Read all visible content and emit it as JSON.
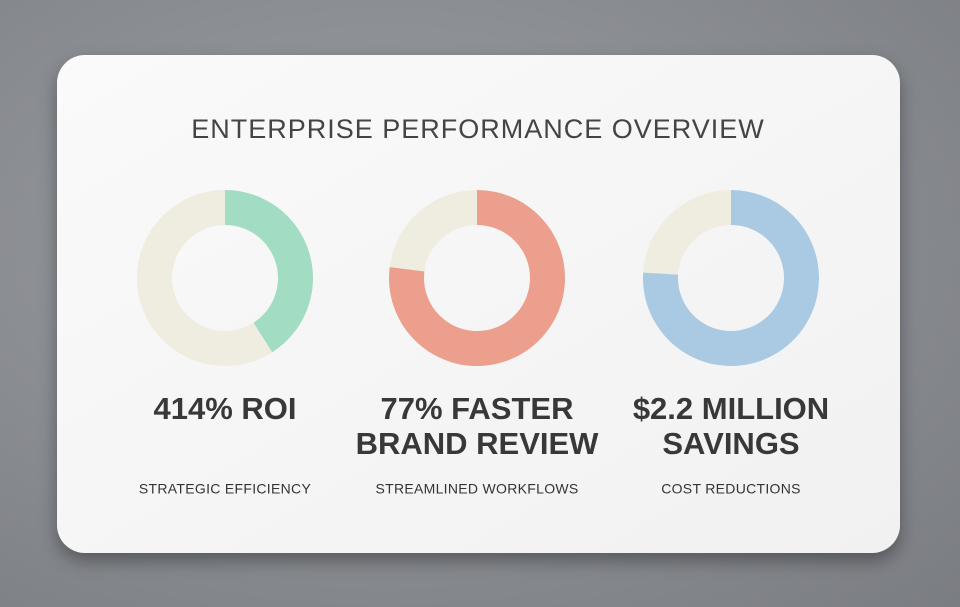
{
  "title": "ENTERPRISE PERFORMANCE OVERVIEW",
  "chart_data": [
    {
      "type": "donut",
      "title": [
        "414% ROI"
      ],
      "subtitle": "STRATEGIC EFFICIENCY",
      "values": [
        41,
        59
      ],
      "colors": [
        "#a2dcc2",
        "#efece0"
      ]
    },
    {
      "type": "donut",
      "title": [
        "77% FASTER",
        "BRAND REVIEW"
      ],
      "subtitle": "STREAMLINED WORKFLOWS",
      "values": [
        77,
        23
      ],
      "colors": [
        "#ec9f8c",
        "#efece0"
      ]
    },
    {
      "type": "donut",
      "title": [
        "$2.2 MILLION",
        "SAVINGS"
      ],
      "subtitle": "COST REDUCTIONS",
      "values": [
        76,
        24
      ],
      "colors": [
        "#aac9e3",
        "#efece0"
      ]
    }
  ]
}
